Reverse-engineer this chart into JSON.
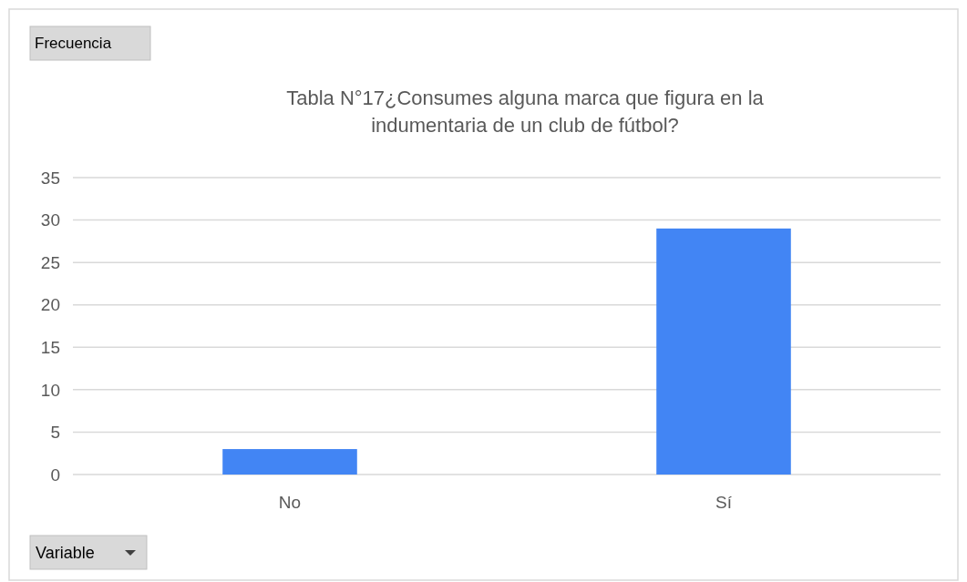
{
  "chart_data": {
    "type": "bar",
    "title": "Tabla N°17¿Consumes alguna marca que figura en la indumentaria de un club de fútbol?",
    "categories": [
      "No",
      "Sí"
    ],
    "values": [
      3,
      29
    ],
    "color": "#4285f4",
    "ylim": [
      0,
      35
    ],
    "yticks": [
      0,
      5,
      10,
      15,
      20,
      25,
      30,
      35
    ],
    "grid": "y",
    "annotations": [
      "Frecuencia",
      "Variable"
    ]
  }
}
